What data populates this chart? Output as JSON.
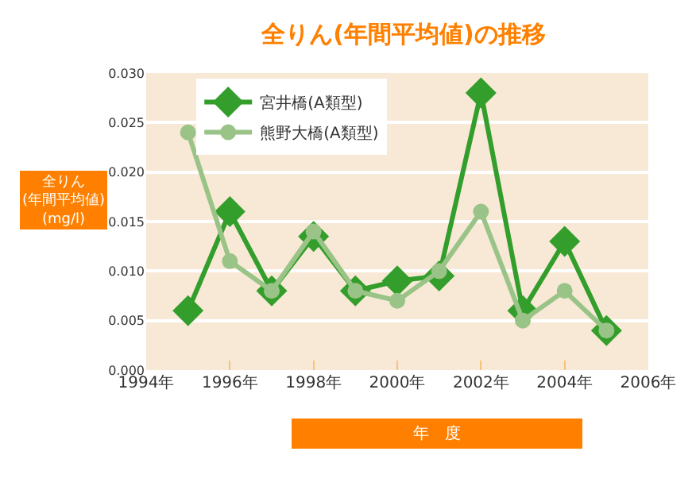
{
  "chart_data": {
    "type": "line",
    "title": "全りん(年間平均値)の推移",
    "xlabel": "年　度",
    "ylabel": "全りん\n(年間平均値)\n(mg/l)",
    "x": [
      1995,
      1996,
      1997,
      1998,
      1999,
      2000,
      2001,
      2002,
      2003,
      2004,
      2005
    ],
    "series": [
      {
        "name": "宮井橋(A類型)",
        "color": "#339e2b",
        "marker": "diamond",
        "values": [
          0.006,
          0.016,
          0.008,
          0.0135,
          0.008,
          0.009,
          0.0095,
          0.028,
          0.006,
          0.013,
          0.004
        ]
      },
      {
        "name": "熊野大橋(A類型)",
        "color": "#9ac487",
        "marker": "circle",
        "values": [
          0.024,
          0.011,
          0.008,
          0.014,
          0.008,
          0.007,
          0.01,
          0.016,
          0.005,
          0.008,
          0.004
        ]
      }
    ],
    "xlim": [
      1994,
      2006
    ],
    "xticks": [
      {
        "value": 1994,
        "label": "1994年"
      },
      {
        "value": 1996,
        "label": "1996年"
      },
      {
        "value": 1998,
        "label": "1998年"
      },
      {
        "value": 2000,
        "label": "2000年"
      },
      {
        "value": 2002,
        "label": "2002年"
      },
      {
        "value": 2004,
        "label": "2004年"
      },
      {
        "value": 2006,
        "label": "2006年"
      }
    ],
    "ylim": [
      0,
      0.03
    ],
    "yticks": [
      {
        "value": 0,
        "label": "0.000"
      },
      {
        "value": 0.005,
        "label": "0.005"
      },
      {
        "value": 0.01,
        "label": "0.010"
      },
      {
        "value": 0.015,
        "label": "0.015"
      },
      {
        "value": 0.02,
        "label": "0.020"
      },
      {
        "value": 0.025,
        "label": "0.025"
      },
      {
        "value": 0.03,
        "label": "0.030"
      }
    ],
    "grid": "y",
    "legend": "top left",
    "line_style": "solid"
  }
}
